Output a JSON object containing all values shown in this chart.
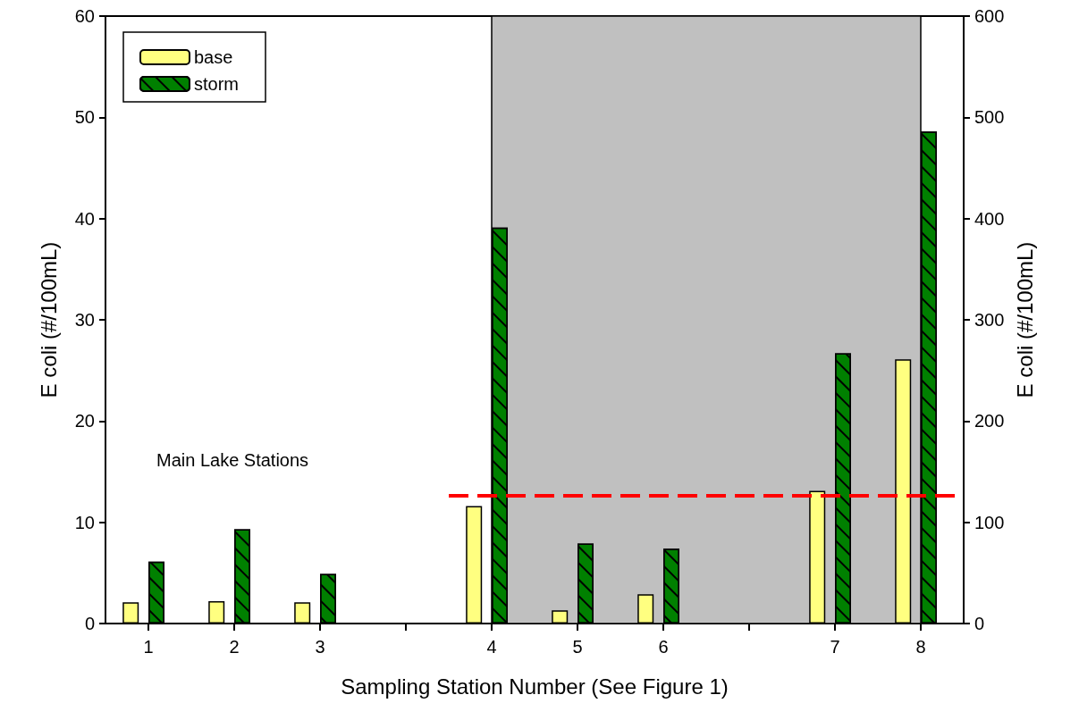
{
  "chart_data": {
    "type": "bar",
    "xlabel": "Sampling Station Number (See Figure 1)",
    "ylabel": "E coli (#/100mL)",
    "y2label": "E coli (#/100mL)",
    "categories": [
      "1",
      "2",
      "3",
      null,
      "4",
      "5",
      "6",
      null,
      "7",
      "8"
    ],
    "ylim": [
      0,
      60
    ],
    "yticks": [
      0,
      10,
      20,
      30,
      40,
      50,
      60
    ],
    "y2lim": [
      0,
      600
    ],
    "y2ticks": [
      0,
      100,
      200,
      300,
      400,
      500,
      600
    ],
    "series": [
      {
        "name": "base",
        "color": "#ffff80",
        "values": [
          2.1,
          2.2,
          2.1,
          null,
          null,
          null,
          null,
          null,
          null,
          null
        ]
      },
      {
        "name": "storm",
        "color": "#008000",
        "values": [
          6.1,
          9.3,
          4.9,
          null,
          null,
          null,
          null,
          null,
          null,
          null
        ]
      },
      {
        "color": "#ffff80",
        "axis": "y2",
        "values": [
          null,
          null,
          null,
          null,
          116,
          13,
          29,
          null,
          131,
          261
        ]
      },
      {
        "color": "#008000",
        "axis": "y2",
        "values": [
          null,
          null,
          null,
          null,
          391,
          79,
          74,
          null,
          267,
          486
        ]
      }
    ],
    "bands": [
      {
        "axis": "x",
        "from": "4",
        "to": "8",
        "color": "#c0c0c0"
      }
    ],
    "ref_lines": [
      {
        "axis": "y2",
        "value": 126,
        "color": "#ff0000",
        "line_style": "dashed"
      }
    ],
    "annotations": [
      "Main Lake Stations"
    ],
    "legend": "top left",
    "grid": false
  }
}
